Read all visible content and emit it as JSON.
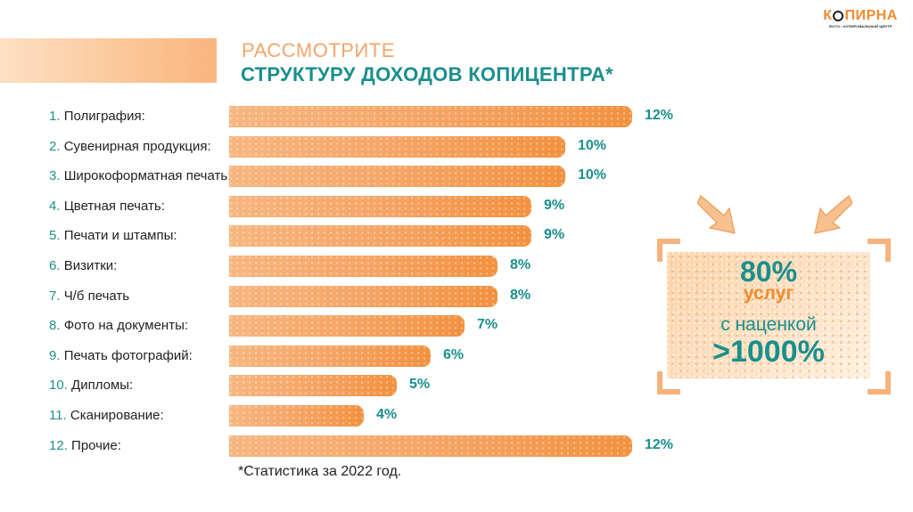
{
  "header": {
    "title_line1": "РАССМОТРИТЕ",
    "title_line2": "СТРУКТУРУ ДОХОДОВ КОПИЦЕНТРА*"
  },
  "logo": {
    "word_start": "К",
    "word_end": "ПИРНА",
    "tagline": "ФОТО • КОПИРОВАЛЬНЫЙ ЦЕНТР"
  },
  "chart_data": {
    "type": "bar",
    "orientation": "horizontal",
    "categories": [
      {
        "num": "1.",
        "name": "Полиграфия:"
      },
      {
        "num": "2.",
        "name": "Сувенирная продукция:"
      },
      {
        "num": "3.",
        "name": "Широкоформатная печать:"
      },
      {
        "num": "4.",
        "name": "Цветная печать:"
      },
      {
        "num": "5.",
        "name": "Печати и штампы:"
      },
      {
        "num": "6.",
        "name": "Визитки:"
      },
      {
        "num": "7.",
        "name": "Ч/б печать"
      },
      {
        "num": "8.",
        "name": "Фото на документы:"
      },
      {
        "num": "9.",
        "name": "Печать фотографий:"
      },
      {
        "num": "10.",
        "name": "Дипломы:"
      },
      {
        "num": "11.",
        "name": "Сканирование:"
      },
      {
        "num": "12.",
        "name": "Прочие:"
      }
    ],
    "values": [
      12,
      10,
      10,
      9,
      9,
      8,
      8,
      7,
      6,
      5,
      4,
      12
    ],
    "value_labels": [
      "12%",
      "10%",
      "10%",
      "9%",
      "9%",
      "8%",
      "8%",
      "7%",
      "6%",
      "5%",
      "4%",
      "12%"
    ],
    "unit": "%",
    "xlim": [
      0,
      12
    ],
    "bar_color": "#f5a363",
    "label_color": "#1a8f8c"
  },
  "callout": {
    "percent": "80%",
    "line1": "услуг",
    "line2": "с наценкой",
    "big": ">1000%",
    "icons": [
      "arrow-down-right-icon",
      "arrow-down-left-icon"
    ]
  },
  "footnote": "*Статистика за 2022 год.",
  "colors": {
    "accent": "#1a8f8c",
    "orange": "#f28a2e",
    "light_orange": "#f4a56a"
  }
}
